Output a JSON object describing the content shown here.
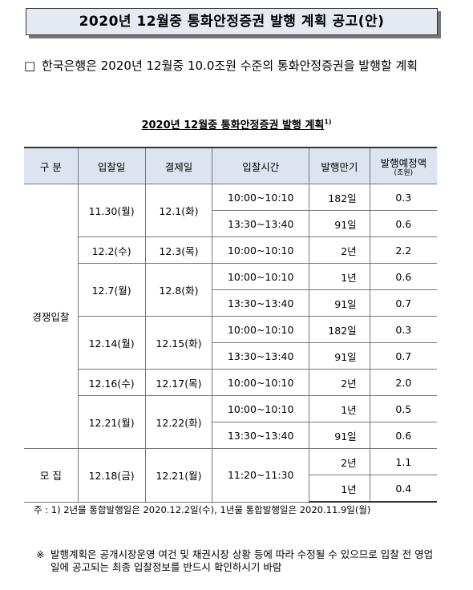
{
  "header": {
    "title": "2020년 12월중 통화안정증권 발행 계획 공고(안)"
  },
  "summary": {
    "bullet": "□",
    "text": "한국은행은 2020년 12월중 10.0조원 수준의 통화안정증권을 발행할 계획"
  },
  "table": {
    "title": "2020년 12월중 통화안정증권 발행 계획",
    "title_note": "1)",
    "columns": [
      "구 분",
      "입찰일",
      "결제일",
      "입찰시간",
      "발행만기",
      "발행예정액"
    ],
    "amount_unit": "(조원)",
    "groups": [
      {
        "label": "경쟁입찰",
        "auctions": [
          {
            "auction_date": "11.30(월)",
            "settlement_date": "12.1(화)",
            "issues": [
              {
                "time": "10:00~10:10",
                "maturity": "182일",
                "amount": "0.3"
              },
              {
                "time": "13:30~13:40",
                "maturity": "91일",
                "amount": "0.6"
              }
            ]
          },
          {
            "auction_date": "12.2(수)",
            "settlement_date": "12.3(목)",
            "issues": [
              {
                "time": "10:00~10:10",
                "maturity": "2년",
                "amount": "2.2"
              }
            ]
          },
          {
            "auction_date": "12.7(월)",
            "settlement_date": "12.8(화)",
            "issues": [
              {
                "time": "10:00~10:10",
                "maturity": "1년",
                "amount": "0.6"
              },
              {
                "time": "13:30~13:40",
                "maturity": "91일",
                "amount": "0.7"
              }
            ]
          },
          {
            "auction_date": "12.14(월)",
            "settlement_date": "12.15(화)",
            "issues": [
              {
                "time": "10:00~10:10",
                "maturity": "182일",
                "amount": "0.3"
              },
              {
                "time": "13:30~13:40",
                "maturity": "91일",
                "amount": "0.7"
              }
            ]
          },
          {
            "auction_date": "12.16(수)",
            "settlement_date": "12.17(목)",
            "issues": [
              {
                "time": "10:00~10:10",
                "maturity": "2년",
                "amount": "2.0"
              }
            ]
          },
          {
            "auction_date": "12.21(월)",
            "settlement_date": "12.22(화)",
            "issues": [
              {
                "time": "10:00~10:10",
                "maturity": "1년",
                "amount": "0.5"
              },
              {
                "time": "13:30~13:40",
                "maturity": "91일",
                "amount": "0.6"
              }
            ]
          }
        ]
      },
      {
        "label": "모 집",
        "auctions": [
          {
            "auction_date": "12.18(금)",
            "settlement_date": "12.21(월)",
            "time": "11:20~11:30",
            "issues": [
              {
                "maturity": "2년",
                "amount": "1.1"
              },
              {
                "maturity": "1년",
                "amount": "0.4"
              }
            ]
          }
        ]
      }
    ]
  },
  "notes": {
    "footnote": "주 : 1) 2년물 통합발행일은 2020.12.2일(수), 1년물 통합발행일은 2020.11.9일(월)",
    "caution_mark": "※",
    "caution": "발행계획은 공개시장운영 여건 및 채권시장 상황 등에 따라 수정될 수 있으므로 입찰 전 영업일에 공고되는 최종 입찰정보를 반드시 확인하시기 바람"
  }
}
